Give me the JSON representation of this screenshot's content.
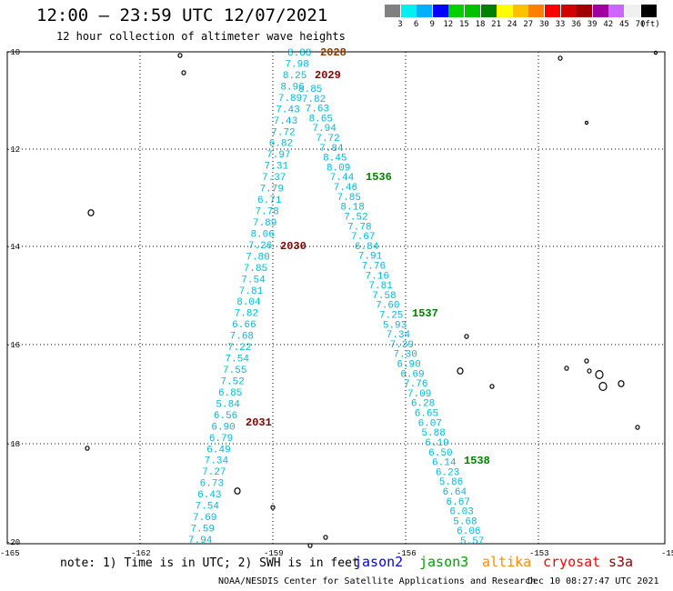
{
  "title": "12:00 – 23:59 UTC 12/07/2021",
  "subtitle": "12 hour collection of altimeter wave heights",
  "legend": {
    "colors": [
      "#808080",
      "#00f0f0",
      "#00b0ff",
      "#0000ff",
      "#00d000",
      "#00c000",
      "#008000",
      "#ffff00",
      "#ffc000",
      "#ff8000",
      "#ff0000",
      "#d00000",
      "#a00000",
      "#a000a0",
      "#cc66ff",
      "#f0f0f0",
      "#000000"
    ],
    "labels": [
      "3",
      "6",
      "9",
      "12",
      "15",
      "18",
      "21",
      "24",
      "27",
      "30",
      "33",
      "36",
      "39",
      "42",
      "45",
      "70"
    ],
    "unit": "(ft)"
  },
  "axes": {
    "lat_ticks": [
      "-10",
      "-12",
      "-14",
      "-16",
      "-18",
      "-20"
    ],
    "lon_ticks": [
      "-165",
      "-162",
      "-159",
      "-156",
      "-153",
      "-15"
    ]
  },
  "passes": [
    {
      "label": "2028",
      "color": "#8b3a00"
    },
    {
      "label": "2029",
      "color": "#800000"
    },
    {
      "label": "2030",
      "color": "#800000"
    },
    {
      "label": "2031",
      "color": "#800000"
    },
    {
      "label": "1536",
      "color": "#008000"
    },
    {
      "label": "1537",
      "color": "#008000"
    },
    {
      "label": "1538",
      "color": "#008000"
    }
  ],
  "track1_values": [
    "8.88",
    "7.98",
    "8.25",
    "8.96",
    "7.89",
    "7.43",
    "7.43",
    "7.72",
    "6.82",
    "7.97",
    "7.31",
    "7.37",
    "7.79",
    "6.71",
    "7.78",
    "7.89",
    "8.06",
    "7.26",
    "7.80",
    "7.85",
    "7.54",
    "7.81",
    "8.04",
    "7.82",
    "6.66",
    "7.68",
    "7.22",
    "7.54",
    "7.55",
    "7.52",
    "6.85",
    "5.84",
    "6.56",
    "6.90",
    "6.79",
    "6.49",
    "7.34",
    "7.27",
    "6.73",
    "6.43",
    "7.54",
    "7.69",
    "7.59",
    "7.94"
  ],
  "track2_values": [
    "8.85",
    "7.82",
    "7.63",
    "8.65",
    "7.94",
    "7.72",
    "7.84",
    "8.45",
    "8.09",
    "7.44",
    "7.46",
    "7.85",
    "8.18",
    "7.52",
    "7.78",
    "7.67",
    "6.84",
    "7.91",
    "7.76",
    "7.16",
    "7.81",
    "7.58",
    "7.60",
    "7.25",
    "5.93",
    "7.34",
    "7.39",
    "7.30",
    "6.90",
    "6.69",
    "7.76",
    "7.09",
    "6.28",
    "6.65",
    "6.07",
    "5.88",
    "6.19",
    "6.50",
    "6.14",
    "6.23",
    "5.86",
    "6.64",
    "6.67",
    "6.03",
    "5.68",
    "6.06",
    "5.57"
  ],
  "note": "note: 1) Time is in UTC; 2) SWH is in feet",
  "satellites": [
    {
      "name": "jason2",
      "color": "#0000e0"
    },
    {
      "name": "jason3",
      "color": "#00a000"
    },
    {
      "name": "altika",
      "color": "#ff8c00"
    },
    {
      "name": "cryosat",
      "color": "#ff0000"
    },
    {
      "name": "s3a",
      "color": "#8b0000"
    }
  ],
  "credit": "NOAA/NESDIS Center for Satellite Applications and Research",
  "timestamp": "Dec 10 08:27:47 UTC 2021"
}
